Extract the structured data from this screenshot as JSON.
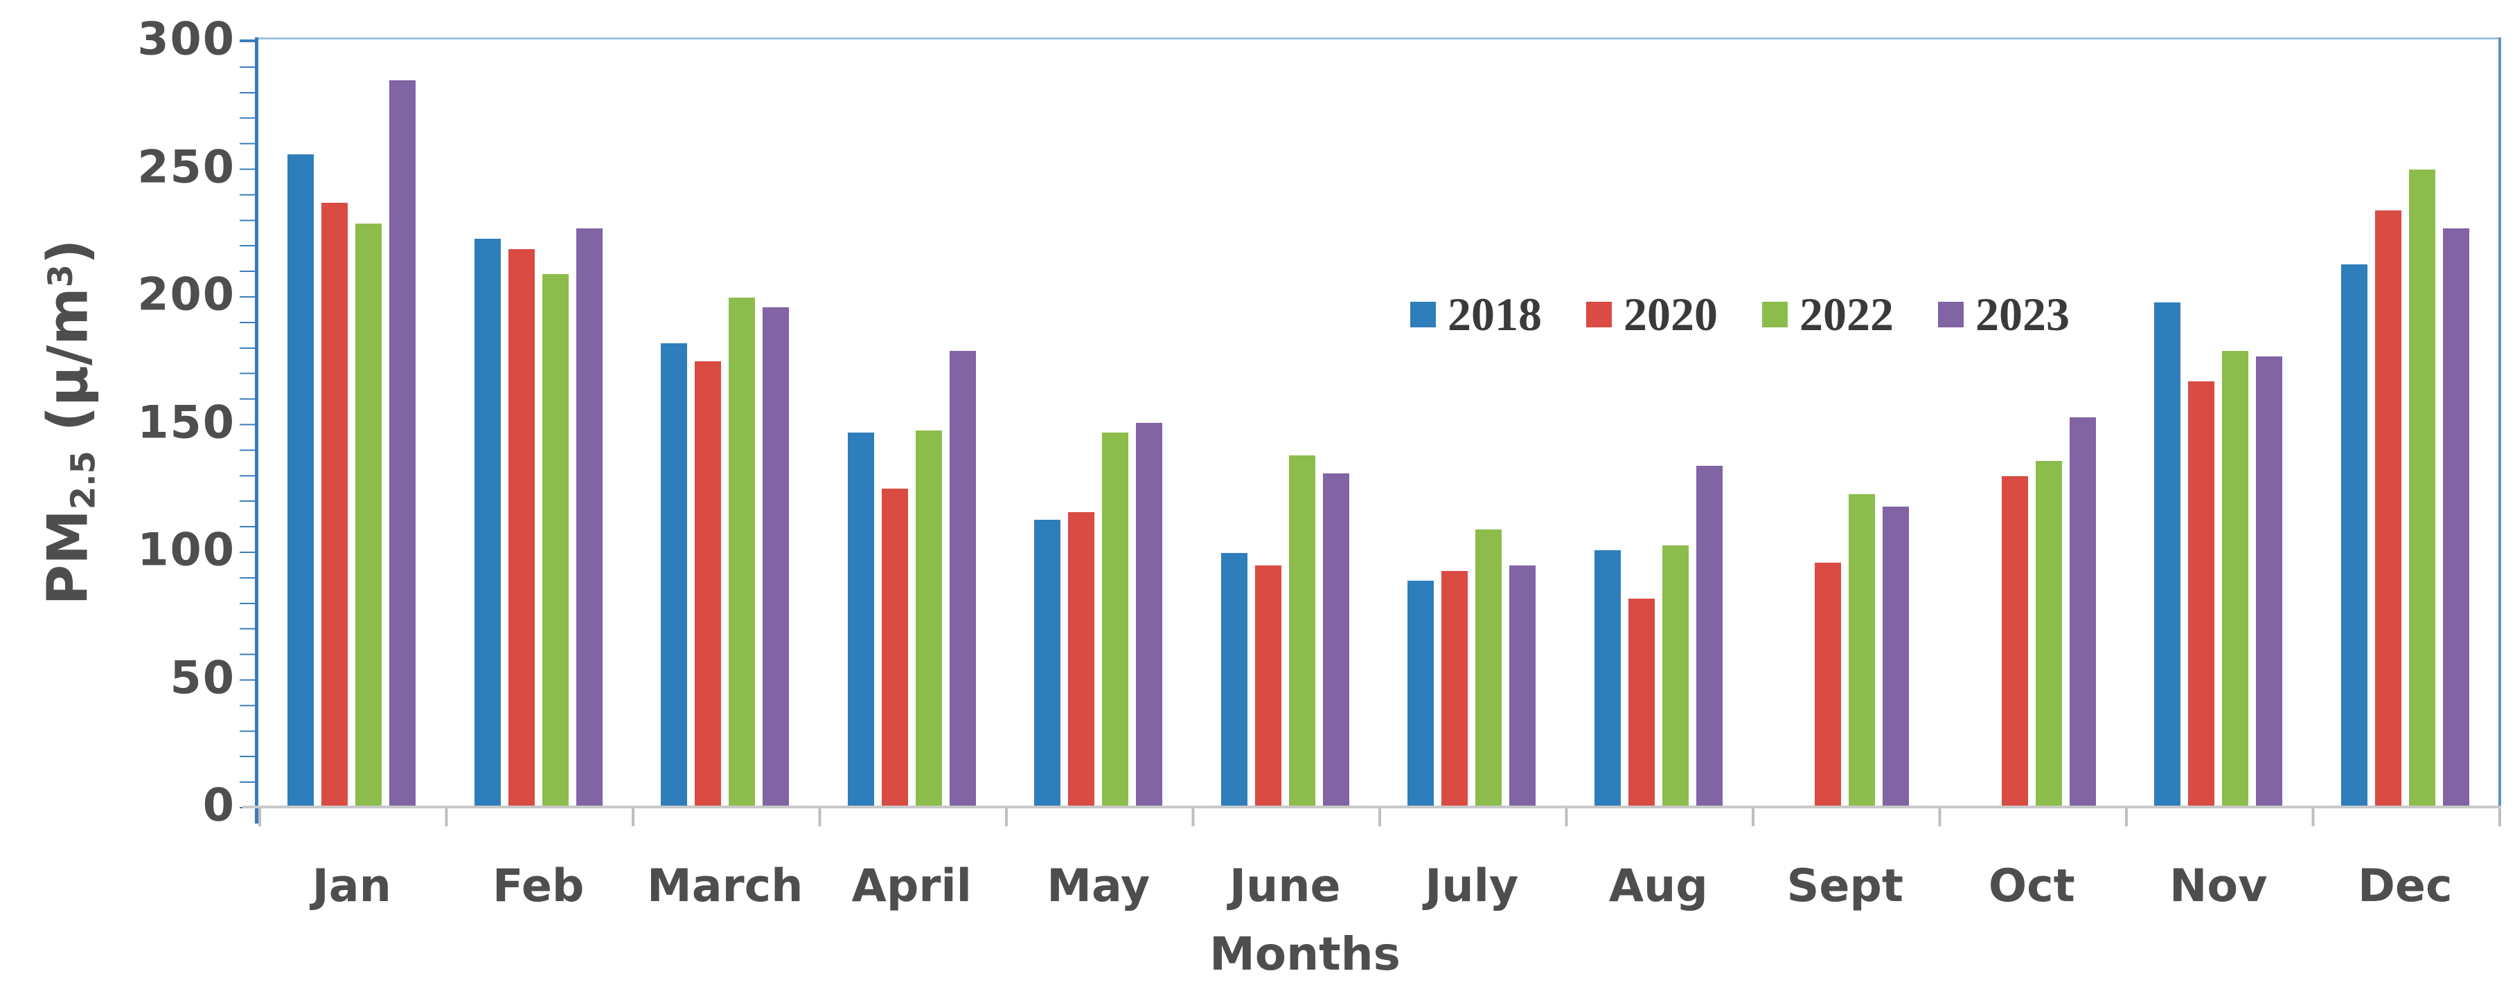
{
  "chart_data": {
    "type": "bar",
    "title": "",
    "categories": [
      "Jan",
      "Feb",
      "March",
      "April",
      "May",
      "June",
      "July",
      "Aug",
      "Sept",
      "Oct",
      "Nov",
      "Dec"
    ],
    "series": [
      {
        "name": "2018",
        "color": "#2E7EBC",
        "values": [
          255,
          222,
          181,
          146,
          112,
          99,
          88,
          100,
          null,
          null,
          197,
          212
        ]
      },
      {
        "name": "2020",
        "color": "#D94B43",
        "values": [
          236,
          218,
          174,
          124,
          115,
          94,
          92,
          81,
          95,
          129,
          166,
          233
        ]
      },
      {
        "name": "2022",
        "color": "#8CBD4C",
        "values": [
          228,
          208,
          199,
          147,
          146,
          137,
          108,
          102,
          122,
          135,
          178,
          249
        ]
      },
      {
        "name": "2023",
        "color": "#8164A3",
        "values": [
          284,
          226,
          195,
          178,
          150,
          130,
          94,
          133,
          117,
          152,
          176,
          226
        ]
      }
    ],
    "xlabel": "Months",
    "ylabel_parts": {
      "base": "PM",
      "sub": "2.5",
      "unit_open": " (μ/m",
      "sup": "3",
      "unit_close": ")"
    },
    "ylim": [
      0,
      300
    ],
    "ytick_step": 50,
    "yminor_step": 10,
    "grid": false,
    "legend_position": "inside-top-center-right"
  },
  "style": {
    "axis_blue": "#3A7CBA",
    "border_light": "#9DC3E0",
    "border_right": "#5B94C0",
    "axis_gray": "#C9C9C9",
    "tick_gray": "#BFBFBF",
    "text_color": "#4E4E4E",
    "legend_text": "#3A3A3A"
  }
}
